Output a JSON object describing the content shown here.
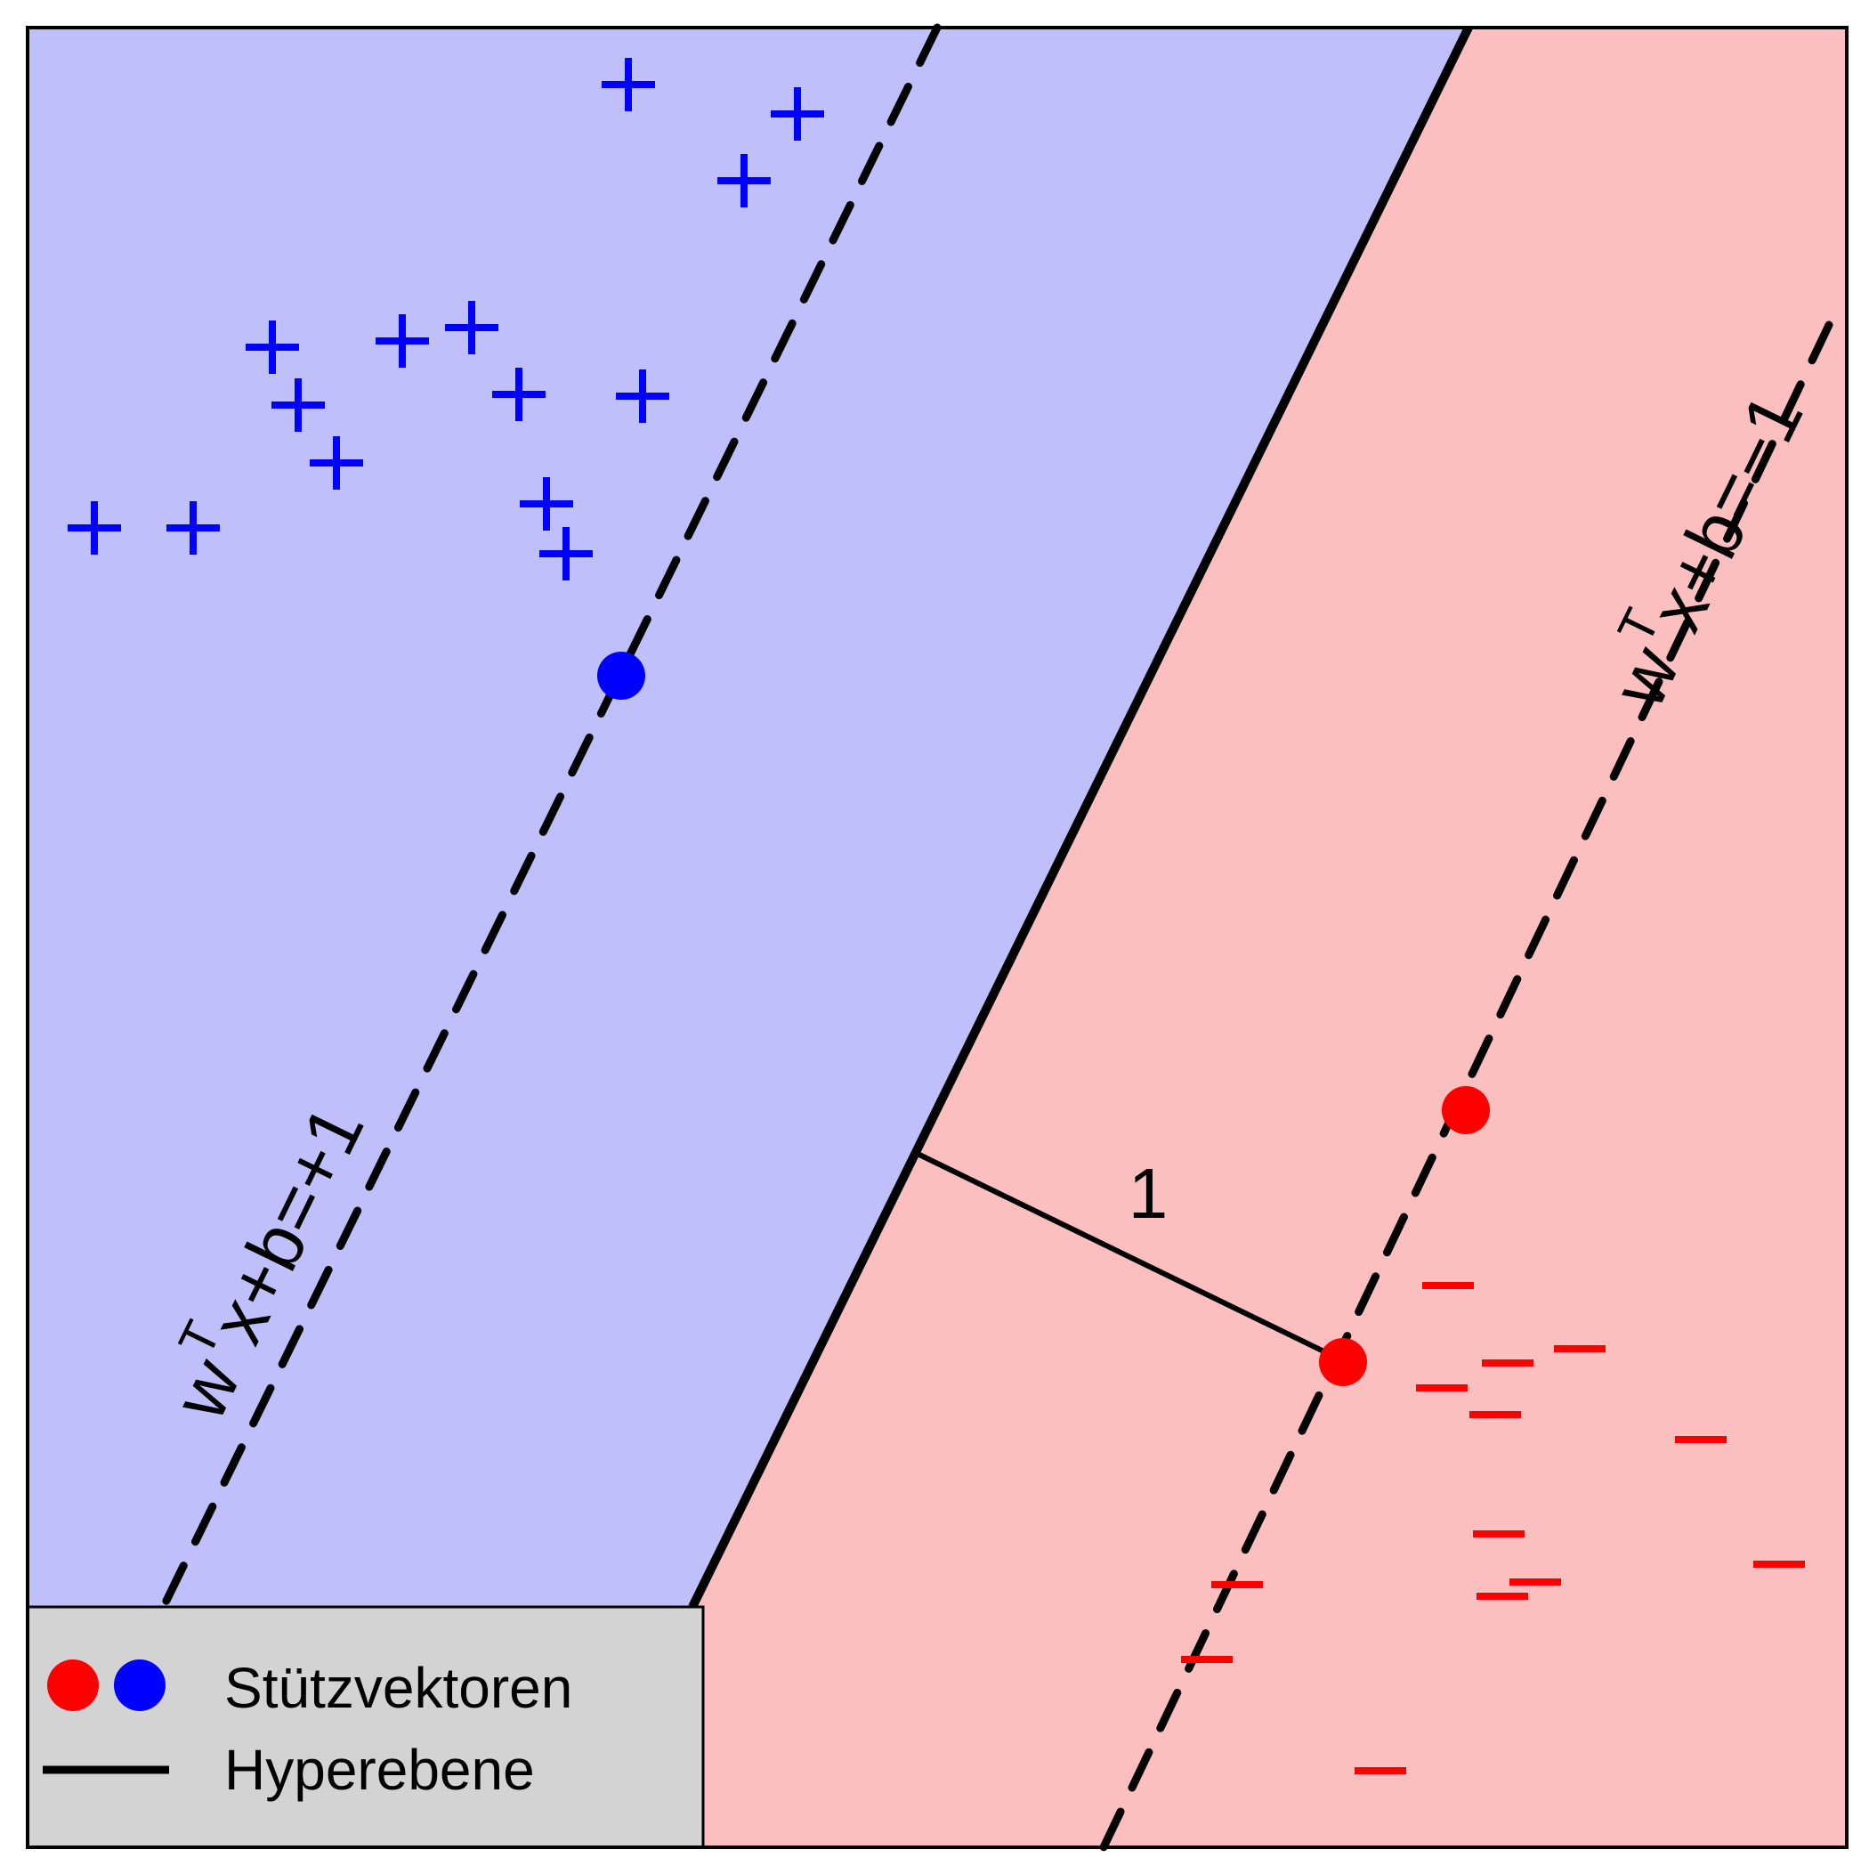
{
  "colors": {
    "positive_region": "#bfbffc",
    "negative_region": "#fcbfbf",
    "positive_class": "#0000ff",
    "negative_class": "#ff0000",
    "line": "#000000",
    "legend_background": "#d3d3d3"
  },
  "labels": {
    "margin_plus": "w",
    "margin_plus_sup": "T",
    "margin_plus_rest": "x+b=+1",
    "margin_minus": "w",
    "margin_minus_sup": "T",
    "margin_minus_rest": "x+b=−1",
    "distance": "1"
  },
  "legend": {
    "support_vectors": "Stützvektoren",
    "hyperplane": "Hyperebene"
  },
  "markers": {
    "positive_symbol": "+",
    "negative_symbol": "−"
  }
}
